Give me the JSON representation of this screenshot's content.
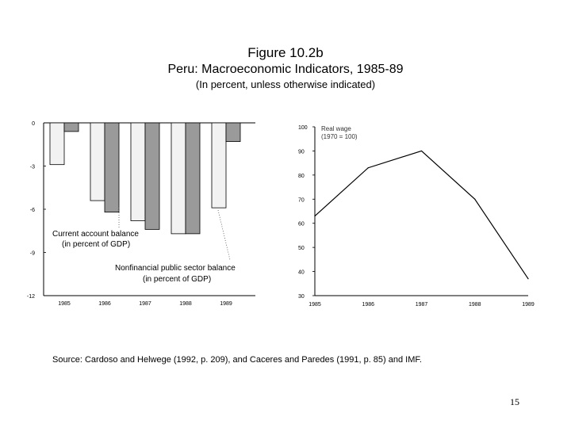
{
  "figure": {
    "title": "Figure 10.2b",
    "subtitle": "Peru: Macroeconomic Indicators, 1985-89",
    "note": "(In percent, unless otherwise indicated)"
  },
  "source": "Source: Cardoso and Helwege (1992, p. 209), and Caceres and Paredes (1991, p. 85) and IMF.",
  "page_number": "15",
  "colors": {
    "current_account": "#f2f2f2",
    "nonfinancial": "#9a9a9a",
    "line": "#000000"
  },
  "chart_data": [
    {
      "type": "bar",
      "categories": [
        "1985",
        "1986",
        "1987",
        "1988",
        "1989"
      ],
      "series": [
        {
          "name": "Current account balance (in percent of GDP)",
          "values": [
            -2.9,
            -5.4,
            -6.8,
            -7.7,
            -5.9
          ]
        },
        {
          "name": "Nonfinancial public sector balance (in percent of GDP)",
          "values": [
            -0.6,
            -6.2,
            -7.4,
            -7.7,
            -1.3
          ]
        }
      ],
      "ylim": [
        -12,
        0
      ],
      "yticks": [
        "0",
        "-3",
        "-6",
        "-9",
        "-12"
      ],
      "ytick_values": [
        0,
        -3,
        -6,
        -9,
        -12
      ],
      "labels": {
        "current_account_line1": "Current account balance",
        "current_account_line2": "(in percent of GDP)",
        "nonfinancial_line1": "Nonfinancial public sector balance",
        "nonfinancial_line2": "(in percent of GDP)"
      }
    },
    {
      "type": "line",
      "x": [
        "1985",
        "1986",
        "1987",
        "1988",
        "1989"
      ],
      "series": [
        {
          "name": "Real wage",
          "values": [
            63,
            83,
            90,
            70,
            37
          ]
        }
      ],
      "ylim": [
        30,
        100
      ],
      "yticks": [
        "100",
        "90",
        "80",
        "70",
        "60",
        "50",
        "40",
        "30"
      ],
      "ytick_values": [
        100,
        90,
        80,
        70,
        60,
        50,
        40,
        30
      ],
      "legend": {
        "line1": "Real wage",
        "line2": "(1970 = 100)"
      }
    }
  ]
}
